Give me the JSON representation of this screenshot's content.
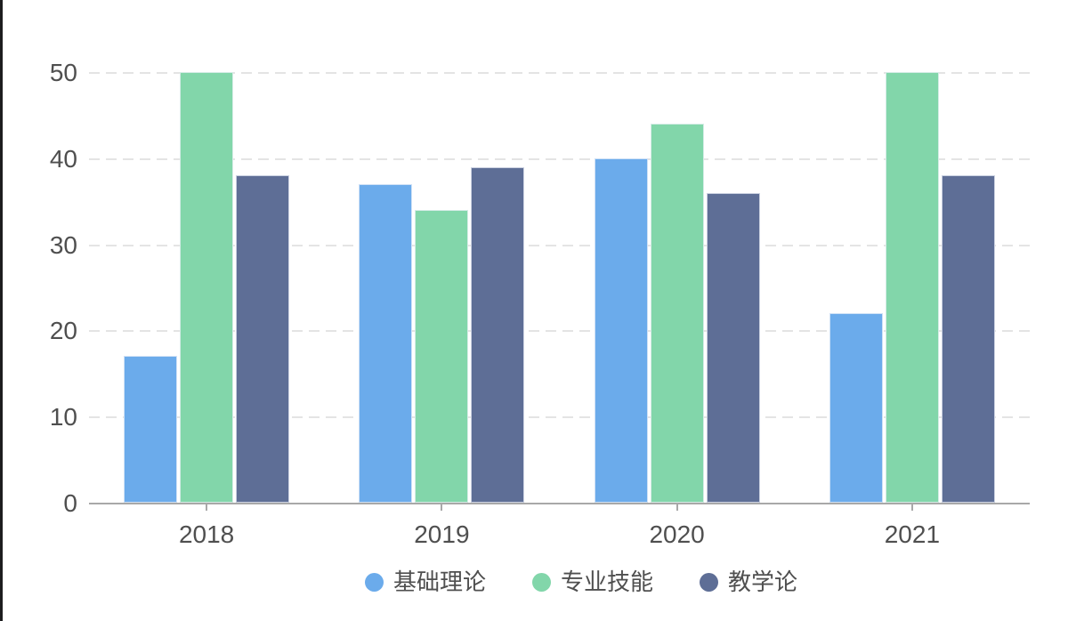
{
  "chart_data": {
    "type": "bar",
    "title": "",
    "xlabel": "",
    "ylabel": "",
    "categories": [
      "2018",
      "2019",
      "2020",
      "2021"
    ],
    "series": [
      {
        "name": "基础理论",
        "color": "#6babeb",
        "values": [
          17,
          37,
          40,
          22
        ]
      },
      {
        "name": "专业技能",
        "color": "#82d6aa",
        "values": [
          50,
          34,
          44,
          50
        ]
      },
      {
        "name": "教学论",
        "color": "#5e6e96",
        "values": [
          38,
          39,
          36,
          38
        ]
      }
    ],
    "ylim": [
      0,
      50
    ],
    "yticks": [
      0,
      10,
      20,
      30,
      40,
      50
    ],
    "grid": "horizontal-dashed",
    "legend_position": "bottom"
  },
  "style": {
    "text_color": "#4f4f4f",
    "axis_color": "#a8a8a8",
    "grid_color": "#e4e4e4",
    "background": "#ffffff",
    "left_edge_color": "#1d1d1f"
  }
}
